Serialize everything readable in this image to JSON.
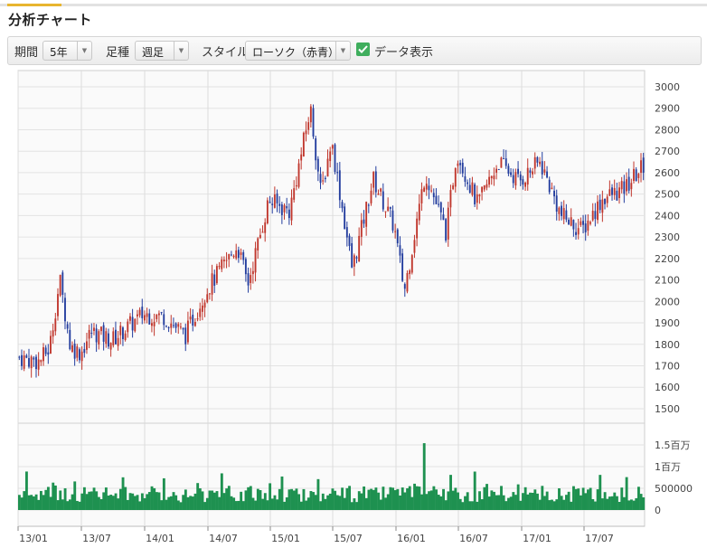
{
  "header": {
    "title": "分析チャート"
  },
  "controls": {
    "period_label": "期間",
    "period_value": "5年",
    "bar_label": "足種",
    "bar_value": "週足",
    "style_label": "スタイル",
    "style_value": "ローソク（赤青）",
    "data_display_label": "データ表示",
    "data_display_checked": true
  },
  "colors": {
    "up": "#c0362c",
    "down": "#233d9e",
    "volume": "#1e9150",
    "accent": "#e8b52f",
    "check": "#3fae5d"
  },
  "chart_data": [
    {
      "type": "candlestick",
      "ylim": [
        1500,
        3000
      ],
      "y_ticks": [
        "3000",
        "2900",
        "2800",
        "2700",
        "2600",
        "2500",
        "2400",
        "2300",
        "2200",
        "2100",
        "2000",
        "1900",
        "1800",
        "1700",
        "1600",
        "1500"
      ],
      "x_ticks": [
        "13/01",
        "13/07",
        "14/01",
        "14/07",
        "15/01",
        "15/07",
        "16/01",
        "16/07",
        "17/01",
        "17/07"
      ],
      "grid": true,
      "approx_weekly_close": [
        {
          "date": "13/01",
          "value": 1740
        },
        {
          "date": "13/03",
          "value": 1720
        },
        {
          "date": "13/04",
          "value": 1780
        },
        {
          "date": "13/05",
          "value": 2100
        },
        {
          "date": "13/06",
          "value": 1790
        },
        {
          "date": "13/07",
          "value": 1760
        },
        {
          "date": "13/08",
          "value": 1860
        },
        {
          "date": "13/10",
          "value": 1820
        },
        {
          "date": "14/01",
          "value": 1940
        },
        {
          "date": "14/03",
          "value": 1930
        },
        {
          "date": "14/05",
          "value": 1840
        },
        {
          "date": "14/07",
          "value": 2050
        },
        {
          "date": "14/10",
          "value": 2260
        },
        {
          "date": "14/11",
          "value": 2080
        },
        {
          "date": "15/01",
          "value": 2470
        },
        {
          "date": "15/03",
          "value": 2420
        },
        {
          "date": "15/05",
          "value": 2900
        },
        {
          "date": "15/06",
          "value": 2500
        },
        {
          "date": "15/07",
          "value": 2750
        },
        {
          "date": "15/09",
          "value": 2150
        },
        {
          "date": "15/11",
          "value": 2570
        },
        {
          "date": "16/01",
          "value": 2350
        },
        {
          "date": "16/02",
          "value": 2050
        },
        {
          "date": "16/04",
          "value": 2600
        },
        {
          "date": "16/06",
          "value": 2320
        },
        {
          "date": "16/07",
          "value": 2700
        },
        {
          "date": "16/09",
          "value": 2450
        },
        {
          "date": "16/11",
          "value": 2650
        },
        {
          "date": "17/01",
          "value": 2560
        },
        {
          "date": "17/03",
          "value": 2650
        },
        {
          "date": "17/05",
          "value": 2400
        },
        {
          "date": "17/07",
          "value": 2330
        },
        {
          "date": "17/09",
          "value": 2480
        },
        {
          "date": "17/11",
          "value": 2520
        },
        {
          "date": "18/01",
          "value": 2640
        }
      ]
    },
    {
      "type": "bar",
      "series_name": "volume",
      "y_ticks": [
        "1.5百万",
        "1百万",
        "500000",
        "0"
      ],
      "ylim": [
        0,
        1500000
      ]
    }
  ]
}
